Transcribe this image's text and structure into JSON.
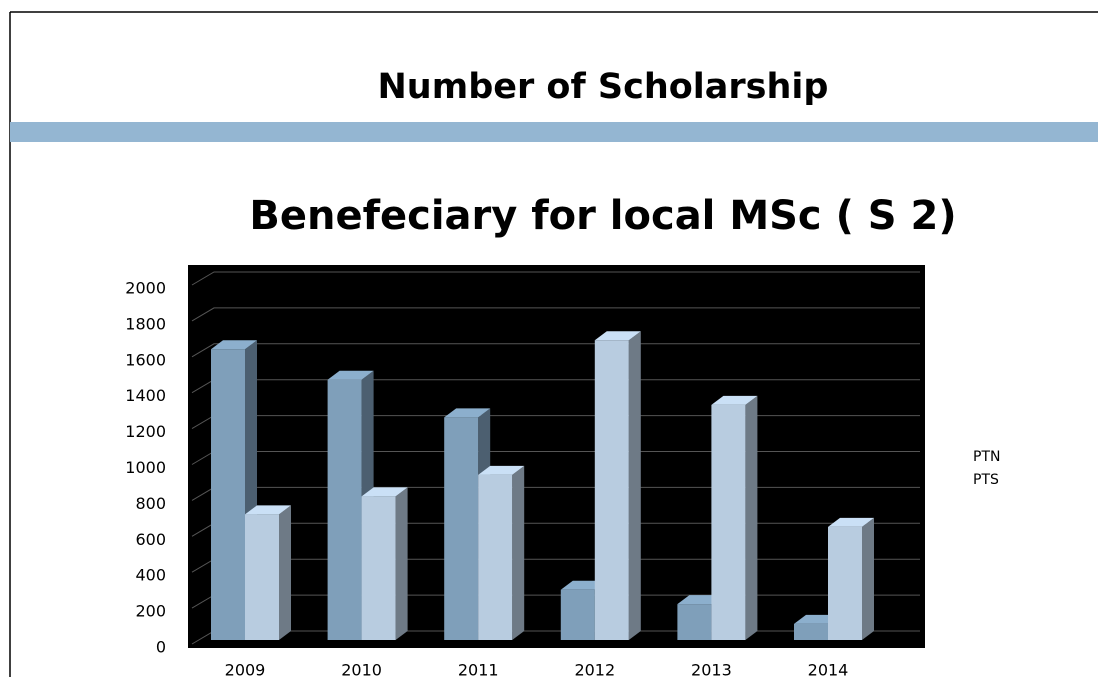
{
  "header": {
    "title": "Number of Scholarship"
  },
  "chart_data": {
    "type": "bar3d",
    "title": "Benefeciary for local MSc ( S 2)",
    "categories": [
      "2009",
      "2010",
      "2011",
      "2012",
      "2013",
      "2014"
    ],
    "series": [
      {
        "name": "PTN",
        "color": "#7f9fba",
        "values": [
          1620,
          1450,
          1240,
          280,
          200,
          90
        ]
      },
      {
        "name": "PTS",
        "color": "#b8cce0",
        "values": [
          700,
          800,
          920,
          1670,
          1310,
          630
        ]
      }
    ],
    "ylim": [
      0,
      2000
    ],
    "yticks": [
      0,
      200,
      400,
      600,
      800,
      1000,
      1200,
      1400,
      1600,
      1800,
      2000
    ],
    "grid": true,
    "legend": "right"
  }
}
